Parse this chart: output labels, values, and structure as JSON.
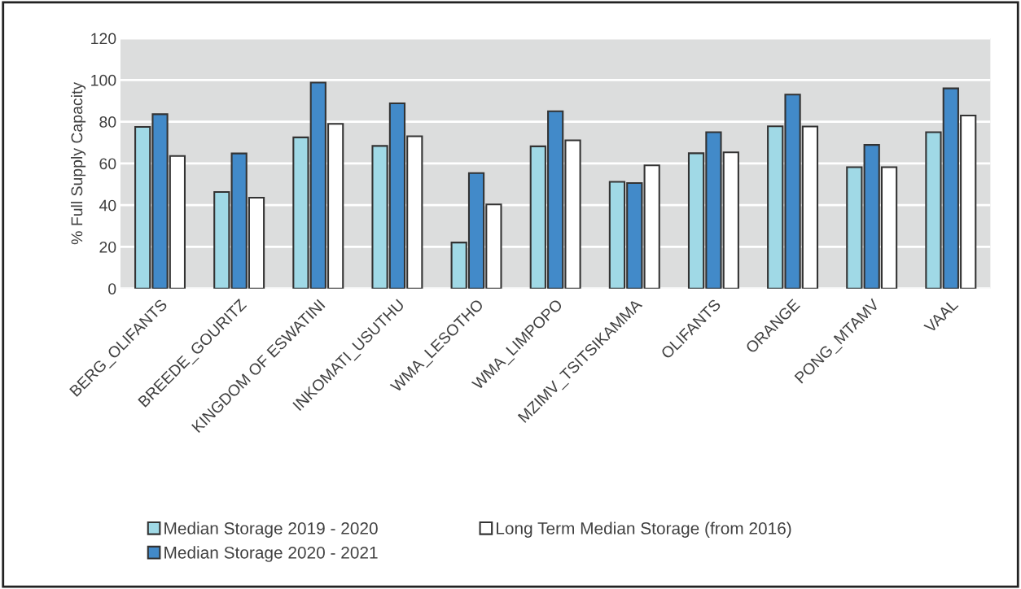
{
  "chart_data": {
    "type": "bar",
    "ylabel": "% Full Supply Capacity",
    "categories": [
      "BERG_OLIFANTS",
      "BREEDE_GOURITZ",
      "KINGDOM OF ESWATINI",
      "INKOMATI_USUTHU",
      "WMA_LESOTHO",
      "WMA_LIMPOPO",
      "MZIMV_TSITSIKAMMA",
      "OLIFANTS",
      "ORANGE",
      "PONG_MTAMV",
      "VAAL"
    ],
    "series": [
      {
        "name": "Median Storage 2019 - 2020",
        "color": "#a0d9e6",
        "values": [
          77.5,
          46.3,
          72.5,
          68.4,
          22.1,
          68.2,
          51.2,
          64.9,
          77.8,
          58.2,
          75.0
        ]
      },
      {
        "name": "Median Storage 2020 - 2021",
        "color": "#428ac9",
        "values": [
          83.6,
          64.8,
          98.8,
          88.8,
          55.4,
          85.0,
          50.6,
          75.0,
          93.0,
          68.9,
          96.0
        ]
      },
      {
        "name": "Long Term Median Storage (from 2016)",
        "color": "#ffffff",
        "values": [
          63.6,
          43.6,
          79.0,
          73.0,
          40.4,
          71.1,
          59.1,
          65.3,
          77.7,
          58.2,
          83.0
        ]
      }
    ],
    "ylim": [
      0,
      120
    ],
    "yticks": [
      0,
      20,
      40,
      60,
      80,
      100,
      120
    ],
    "grid": "y",
    "legend": "bottom"
  }
}
